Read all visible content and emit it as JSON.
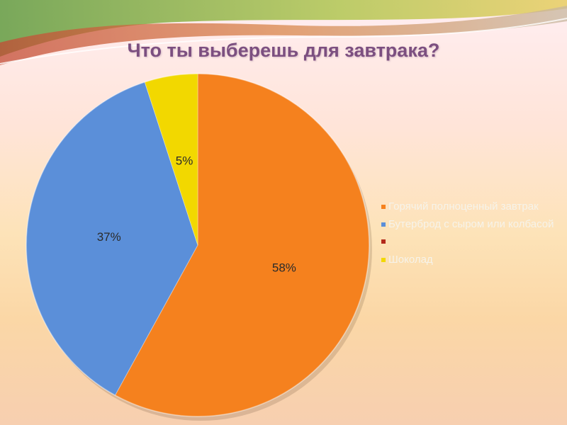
{
  "slide": {
    "title": "Что ты выберешь для завтрака?"
  },
  "chart_data": {
    "type": "pie",
    "title": "Что ты выберешь для завтрака?",
    "categories": [
      "Горячий полноценный завтрак",
      "Бутерброд с сыром или колбасой",
      "",
      "Шоколад"
    ],
    "values": [
      58,
      37,
      0,
      5
    ],
    "data_labels": [
      "58%",
      "37%",
      "",
      "5%"
    ],
    "colors": [
      "#f5811e",
      "#5b8fd9",
      "#b32a1c",
      "#f2d800"
    ],
    "legend_position": "right"
  }
}
